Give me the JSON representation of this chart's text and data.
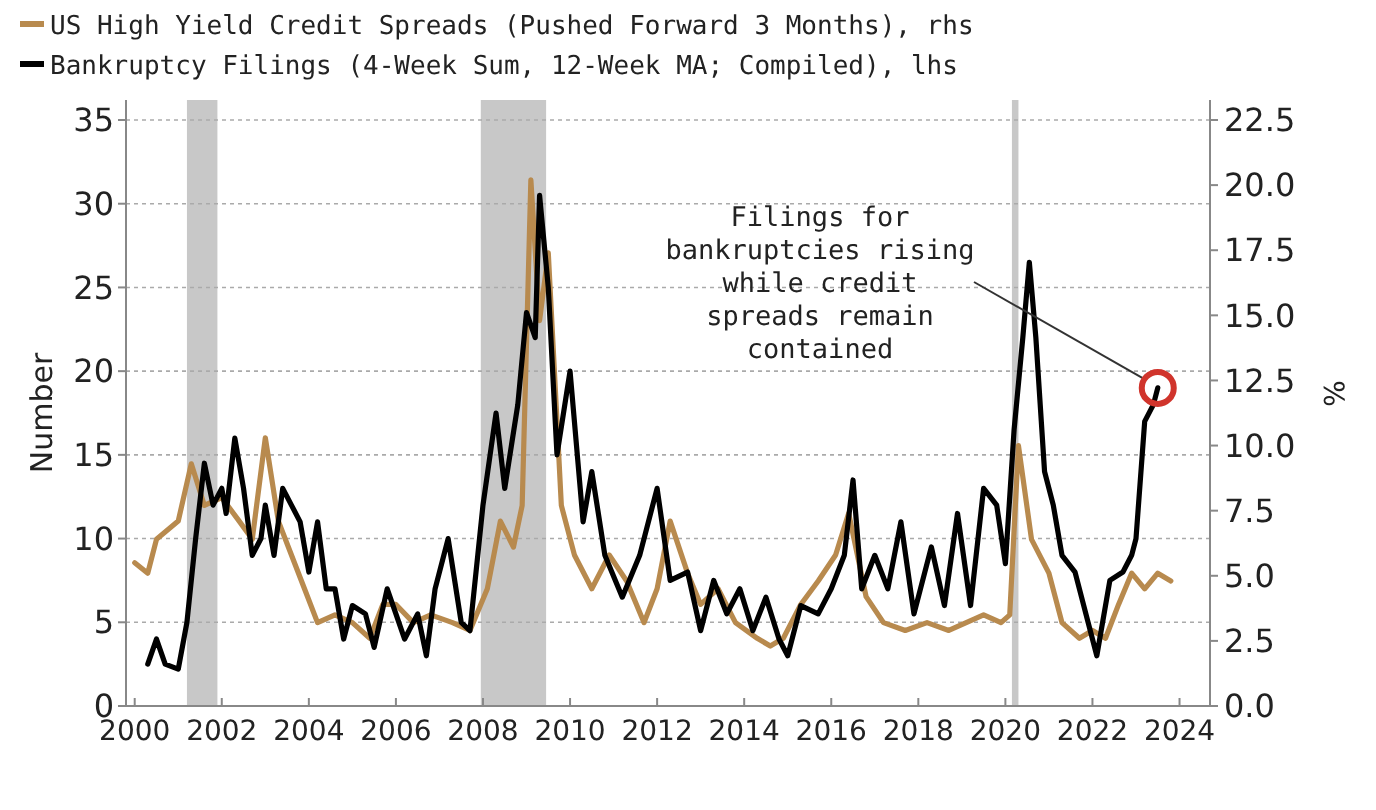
{
  "chart_data": {
    "type": "line",
    "ylabel": "Number",
    "y2label": "%",
    "legend": "top left",
    "grid": "y",
    "xlim": [
      1999.8,
      2024.7
    ],
    "xticks": [
      2000,
      2002,
      2004,
      2006,
      2008,
      2010,
      2012,
      2014,
      2016,
      2018,
      2020,
      2022,
      2024
    ],
    "ylim": [
      0,
      35
    ],
    "yticks": [
      0,
      5,
      10,
      15,
      20,
      25,
      30,
      35
    ],
    "y2lim": [
      0,
      22.5
    ],
    "y2ticks": [
      {
        "value": 0,
        "label": "0.0"
      },
      {
        "value": 2.5,
        "label": "2.5"
      },
      {
        "value": 5,
        "label": "5.0"
      },
      {
        "value": 7.5,
        "label": "7.5"
      },
      {
        "value": 10,
        "label": "10.0"
      },
      {
        "value": 12.5,
        "label": "12.5"
      },
      {
        "value": 15,
        "label": "15.0"
      },
      {
        "value": 17.5,
        "label": "17.5"
      },
      {
        "value": 20,
        "label": "20.0"
      },
      {
        "value": 22.5,
        "label": "22.5"
      }
    ],
    "bands": [
      {
        "axis": "x",
        "from": 2001.2,
        "to": 2001.9,
        "color": "#c8c8c8"
      },
      {
        "axis": "x",
        "from": 2007.95,
        "to": 2009.45,
        "color": "#c8c8c8"
      },
      {
        "axis": "x",
        "from": 2020.15,
        "to": 2020.3,
        "color": "#c8c8c8"
      }
    ],
    "series": [
      {
        "name": "US High Yield Credit Spreads (Pushed Forward 3 Months), rhs",
        "color": "#b88a4e",
        "axis": "y2",
        "x": [
          2000,
          2000.3,
          2000.5,
          2001,
          2001.3,
          2001.6,
          2002,
          2002.4,
          2002.7,
          2003,
          2003.3,
          2003.6,
          2003.9,
          2004.2,
          2004.6,
          2005,
          2005.4,
          2005.7,
          2006,
          2006.4,
          2006.8,
          2007.3,
          2007.7,
          2008.1,
          2008.4,
          2008.7,
          2008.9,
          2009.1,
          2009.3,
          2009.5,
          2009.8,
          2010.1,
          2010.5,
          2010.9,
          2011.3,
          2011.7,
          2012,
          2012.3,
          2012.7,
          2013,
          2013.4,
          2013.8,
          2014.3,
          2014.6,
          2014.9,
          2015.3,
          2015.7,
          2016.1,
          2016.4,
          2016.8,
          2017.2,
          2017.7,
          2018.2,
          2018.7,
          2019.1,
          2019.5,
          2019.9,
          2020.1,
          2020.3,
          2020.6,
          2021,
          2021.3,
          2021.7,
          2022,
          2022.3,
          2022.6,
          2022.9,
          2023.2,
          2023.5,
          2023.8
        ],
        "values": [
          5.5,
          5.1,
          6.4,
          7.1,
          9.3,
          7.7,
          8.0,
          7.1,
          6.4,
          10.3,
          7.1,
          5.8,
          4.5,
          3.2,
          3.5,
          3.2,
          2.6,
          3.9,
          3.9,
          3.2,
          3.5,
          3.2,
          2.9,
          4.5,
          7.1,
          6.1,
          7.7,
          20.2,
          14.8,
          17.4,
          7.7,
          5.8,
          4.5,
          5.8,
          4.8,
          3.2,
          4.5,
          7.1,
          5.1,
          3.9,
          4.5,
          3.2,
          2.6,
          2.3,
          2.6,
          3.9,
          4.8,
          5.8,
          7.4,
          4.2,
          3.2,
          2.9,
          3.2,
          2.9,
          3.2,
          3.5,
          3.2,
          3.5,
          10.0,
          6.4,
          5.1,
          3.2,
          2.6,
          2.9,
          2.6,
          3.9,
          5.1,
          4.5,
          5.1,
          4.8
        ]
      },
      {
        "name": "Bankruptcy Filings (4-Week Sum, 12-Week MA; Compiled), lhs",
        "color": "#000000",
        "axis": "y",
        "x": [
          2000.3,
          2000.5,
          2000.7,
          2001,
          2001.2,
          2001.4,
          2001.6,
          2001.8,
          2002,
          2002.1,
          2002.3,
          2002.5,
          2002.7,
          2002.9,
          2003,
          2003.2,
          2003.4,
          2003.6,
          2003.8,
          2004,
          2004.2,
          2004.4,
          2004.6,
          2004.8,
          2005,
          2005.3,
          2005.5,
          2005.8,
          2006,
          2006.2,
          2006.5,
          2006.7,
          2006.9,
          2007.2,
          2007.5,
          2007.7,
          2008,
          2008.3,
          2008.5,
          2008.8,
          2009,
          2009.2,
          2009.3,
          2009.5,
          2009.7,
          2010,
          2010.3,
          2010.5,
          2010.8,
          2011.2,
          2011.6,
          2012,
          2012.3,
          2012.7,
          2013,
          2013.3,
          2013.6,
          2013.9,
          2014.2,
          2014.5,
          2014.8,
          2015,
          2015.3,
          2015.7,
          2016,
          2016.3,
          2016.5,
          2016.7,
          2017,
          2017.3,
          2017.6,
          2017.9,
          2018.3,
          2018.6,
          2018.9,
          2019.2,
          2019.5,
          2019.8,
          2020,
          2020.2,
          2020.4,
          2020.55,
          2020.7,
          2020.9,
          2021.1,
          2021.3,
          2021.6,
          2021.9,
          2022.1,
          2022.4,
          2022.7,
          2022.9,
          2023,
          2023.2,
          2023.4,
          2023.5
        ],
        "values": [
          2.5,
          4,
          2.5,
          2.2,
          5,
          10,
          14.5,
          12,
          13,
          11.5,
          16,
          13,
          9,
          10,
          12,
          9,
          13,
          12,
          11,
          8,
          11,
          7,
          7,
          4,
          6,
          5.5,
          3.5,
          7,
          5.5,
          4,
          5.5,
          3,
          7,
          10,
          5,
          4.5,
          12,
          17.5,
          13,
          18,
          23.5,
          22,
          30.5,
          25,
          15,
          20,
          11,
          14,
          9,
          6.5,
          9,
          13,
          7.5,
          8,
          4.5,
          7.5,
          5.5,
          7,
          4.5,
          6.5,
          4,
          3,
          6,
          5.5,
          7,
          9,
          13.5,
          7,
          9,
          7,
          11,
          5.5,
          9.5,
          6,
          11.5,
          6,
          13,
          12,
          8.5,
          16.5,
          22,
          26.5,
          22,
          14,
          12,
          9,
          8,
          5,
          3,
          7.5,
          8,
          9,
          10,
          17,
          18,
          19
        ]
      }
    ],
    "annotations": [
      {
        "text": "Filings for\nbankruptcies rising\nwhile credit\nspreads remain\ncontained",
        "x": 2023.5,
        "y": 19
      }
    ]
  }
}
